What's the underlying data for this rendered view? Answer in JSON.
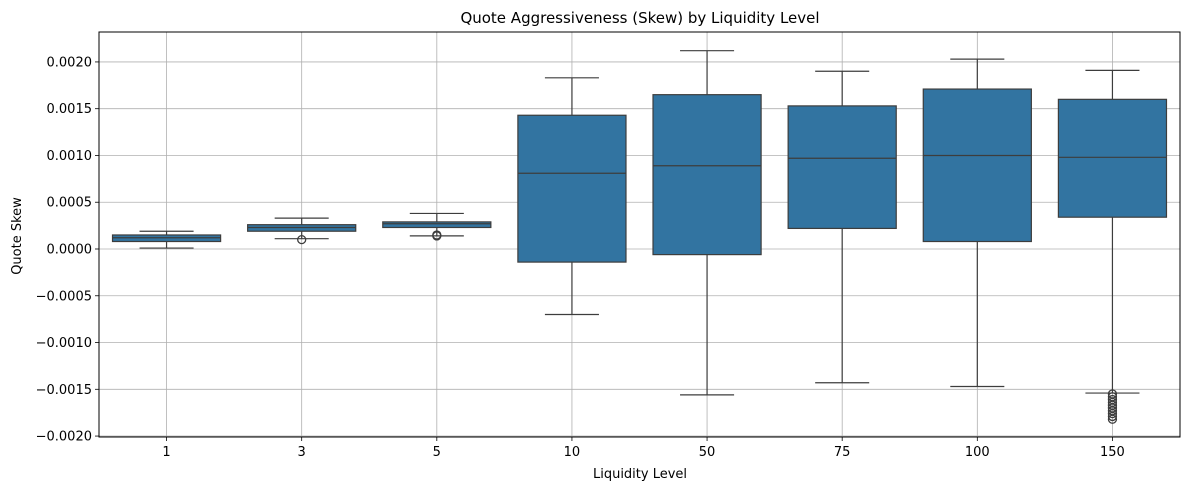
{
  "chart_data": {
    "type": "box",
    "title": "Quote Aggressiveness (Skew) by Liquidity Level",
    "xlabel": "Liquidity Level",
    "ylabel": "Quote Skew",
    "ylim": [
      -0.00201,
      0.00232
    ],
    "yticks": [
      -0.002,
      -0.0015,
      -0.001,
      -0.0005,
      0.0,
      0.0005,
      0.001,
      0.0015,
      0.002
    ],
    "ytick_labels": [
      "−0.0020",
      "−0.0015",
      "−0.0010",
      "−0.0005",
      "0.0000",
      "0.0005",
      "0.0010",
      "0.0015",
      "0.0020"
    ],
    "grid": true,
    "box_color": "#3274a1",
    "line_color": "#3d3d3d",
    "categories": [
      "1",
      "3",
      "5",
      "10",
      "50",
      "75",
      "100",
      "150"
    ],
    "boxes": [
      {
        "whisker_low": 1e-05,
        "q1": 8e-05,
        "median": 0.00012,
        "q3": 0.00015,
        "whisker_high": 0.00019,
        "outliers": []
      },
      {
        "whisker_low": 0.00011,
        "q1": 0.00019,
        "median": 0.00023,
        "q3": 0.00026,
        "whisker_high": 0.00033,
        "outliers": [
          0.0001
        ]
      },
      {
        "whisker_low": 0.00014,
        "q1": 0.00023,
        "median": 0.00027,
        "q3": 0.00029,
        "whisker_high": 0.00038,
        "outliers": [
          0.00014,
          0.00015
        ]
      },
      {
        "whisker_low": -0.0007,
        "q1": -0.00014,
        "median": 0.00081,
        "q3": 0.00143,
        "whisker_high": 0.00183,
        "outliers": []
      },
      {
        "whisker_low": -0.00156,
        "q1": -6e-05,
        "median": 0.00089,
        "q3": 0.00165,
        "whisker_high": 0.00212,
        "outliers": []
      },
      {
        "whisker_low": -0.00143,
        "q1": 0.00022,
        "median": 0.00097,
        "q3": 0.00153,
        "whisker_high": 0.0019,
        "outliers": []
      },
      {
        "whisker_low": -0.00147,
        "q1": 8e-05,
        "median": 0.001,
        "q3": 0.00171,
        "whisker_high": 0.00203,
        "outliers": []
      },
      {
        "whisker_low": -0.00154,
        "q1": 0.00034,
        "median": 0.00098,
        "q3": 0.0016,
        "whisker_high": 0.00191,
        "outliers": [
          -0.00155,
          -0.00158,
          -0.00161,
          -0.00164,
          -0.00167,
          -0.0017,
          -0.00173,
          -0.00176,
          -0.00179,
          -0.00182
        ]
      }
    ]
  }
}
